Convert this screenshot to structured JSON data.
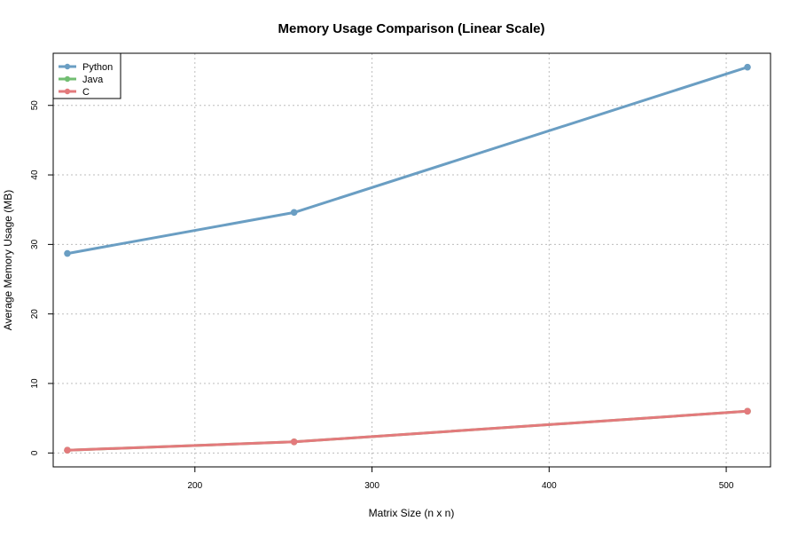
{
  "chart_data": {
    "type": "line",
    "title": "Memory Usage Comparison (Linear Scale)",
    "xlabel": "Matrix Size (n x n)",
    "ylabel": "Average Memory Usage (MB)",
    "xlim": [
      120,
      525
    ],
    "ylim": [
      -2,
      57.5
    ],
    "x_ticks": [
      200,
      300,
      400,
      500
    ],
    "y_ticks": [
      0,
      10,
      20,
      30,
      40,
      50
    ],
    "grid": true,
    "legend_position": "top-left",
    "x": [
      128,
      256,
      512
    ],
    "series": [
      {
        "name": "Python",
        "color": "#6a9ec3",
        "values": [
          28.7,
          34.6,
          55.5
        ]
      },
      {
        "name": "Java",
        "color": "#72be72",
        "values": [
          0.4,
          1.6,
          6.0
        ]
      },
      {
        "name": "C",
        "color": "#e37a7c",
        "values": [
          0.4,
          1.6,
          6.0
        ]
      }
    ]
  }
}
